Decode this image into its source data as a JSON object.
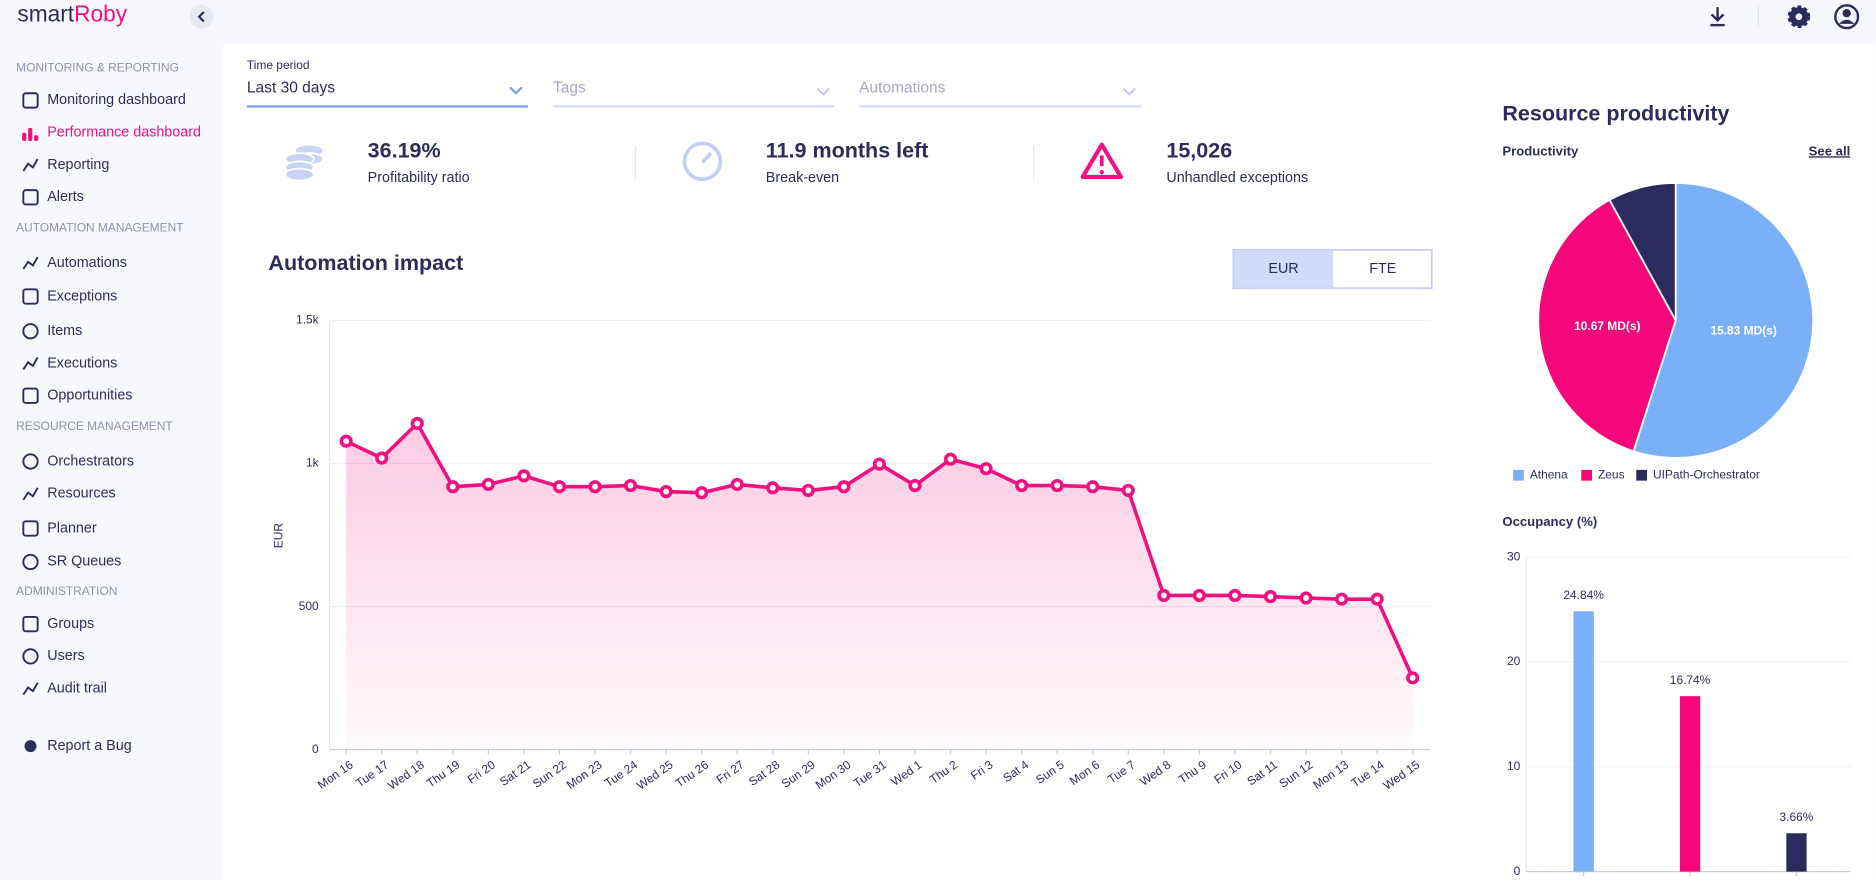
{
  "header": {
    "logo": [
      "smart",
      "Roby"
    ]
  },
  "sidebar": {
    "sections": [
      {
        "title": "MONITORING & REPORTING",
        "items": [
          "Monitoring dashboard",
          "Performance dashboard",
          "Reporting",
          "Alerts"
        ]
      },
      {
        "title": "AUTOMATION MANAGEMENT",
        "items": [
          "Automations",
          "Exceptions",
          "Items",
          "Executions",
          "Opportunities"
        ]
      },
      {
        "title": "RESOURCE MANAGEMENT",
        "items": [
          "Orchestrators",
          "Resources",
          "Planner",
          "SR Queues"
        ]
      },
      {
        "title": "ADMINISTRATION",
        "items": [
          "Groups",
          "Users",
          "Audit trail"
        ]
      }
    ],
    "report_bug": "Report a Bug"
  },
  "filters": [
    {
      "label": "Time period",
      "value": "Last 30 days"
    },
    {
      "placeholder": "Tags"
    },
    {
      "placeholder": "Automations"
    }
  ],
  "kpis": [
    {
      "value": "36.19%",
      "label": "Profitability ratio"
    },
    {
      "value": "11.9 months left",
      "label": "Break-even"
    },
    {
      "value": "15,026",
      "label": "Unhandled exceptions"
    }
  ],
  "toggle": [
    "EUR",
    "FTE"
  ],
  "panel": {
    "title": "Resource productivity",
    "link": "See all"
  },
  "chart_data": [
    {
      "type": "line",
      "title": "Automation impact",
      "y_label": "EUR",
      "categories": [
        "Mon 16",
        "Tue 17",
        "Wed 18",
        "Thu 19",
        "Fri 20",
        "Sat 21",
        "Sun 22",
        "Mon 23",
        "Tue 24",
        "Wed 25",
        "Thu 26",
        "Fri 27",
        "Sat 28",
        "Sun 29",
        "Mon 30",
        "Tue 31",
        "Wed 1",
        "Thu 2",
        "Fri 3",
        "Sat 4",
        "Sun 5",
        "Mon 6",
        "Tue 7",
        "Wed 8",
        "Thu 9",
        "Fri 10",
        "Sat 11",
        "Sun 12",
        "Mon 13",
        "Tue 14",
        "Wed 15"
      ],
      "values": [
        1078,
        1019,
        1140,
        919,
        927,
        957,
        919,
        919,
        923,
        902,
        898,
        927,
        915,
        906,
        919,
        998,
        923,
        1015,
        982,
        923,
        923,
        919,
        906,
        539,
        539,
        539,
        535,
        530,
        526,
        526,
        251
      ],
      "color": "#f0107f",
      "area": true,
      "ylim": [
        0,
        1500
      ],
      "yticks": [
        0,
        500,
        {
          "value": 1000,
          "label": "1k"
        },
        {
          "value": 1500,
          "label": "1.5k"
        }
      ],
      "grid": true
    },
    {
      "type": "pie",
      "title": "Productivity",
      "categories": [
        "Athena",
        "Zeus",
        "UIPath-Orchestrator"
      ],
      "values": [
        15.83,
        10.67,
        2.3
      ],
      "value_labels": [
        "15.83 MD(s)",
        "10.67 MD(s)",
        null
      ],
      "colors": [
        "#7ab0f7",
        "#f5077b",
        "#2b2b5e"
      ],
      "legend": "bottom"
    },
    {
      "type": "bar",
      "title": "Occupancy (%)",
      "categories": [
        null,
        null,
        null
      ],
      "values": [
        24.84,
        16.74,
        3.66
      ],
      "value_labels": [
        "24.84%",
        "16.74%",
        "3.66%"
      ],
      "colors": [
        "#7ab0f7",
        "#f5077b",
        "#2b2b5e"
      ],
      "ylim": [
        0,
        30
      ],
      "yticks": [
        0,
        10,
        20,
        30
      ],
      "grid": true
    }
  ]
}
